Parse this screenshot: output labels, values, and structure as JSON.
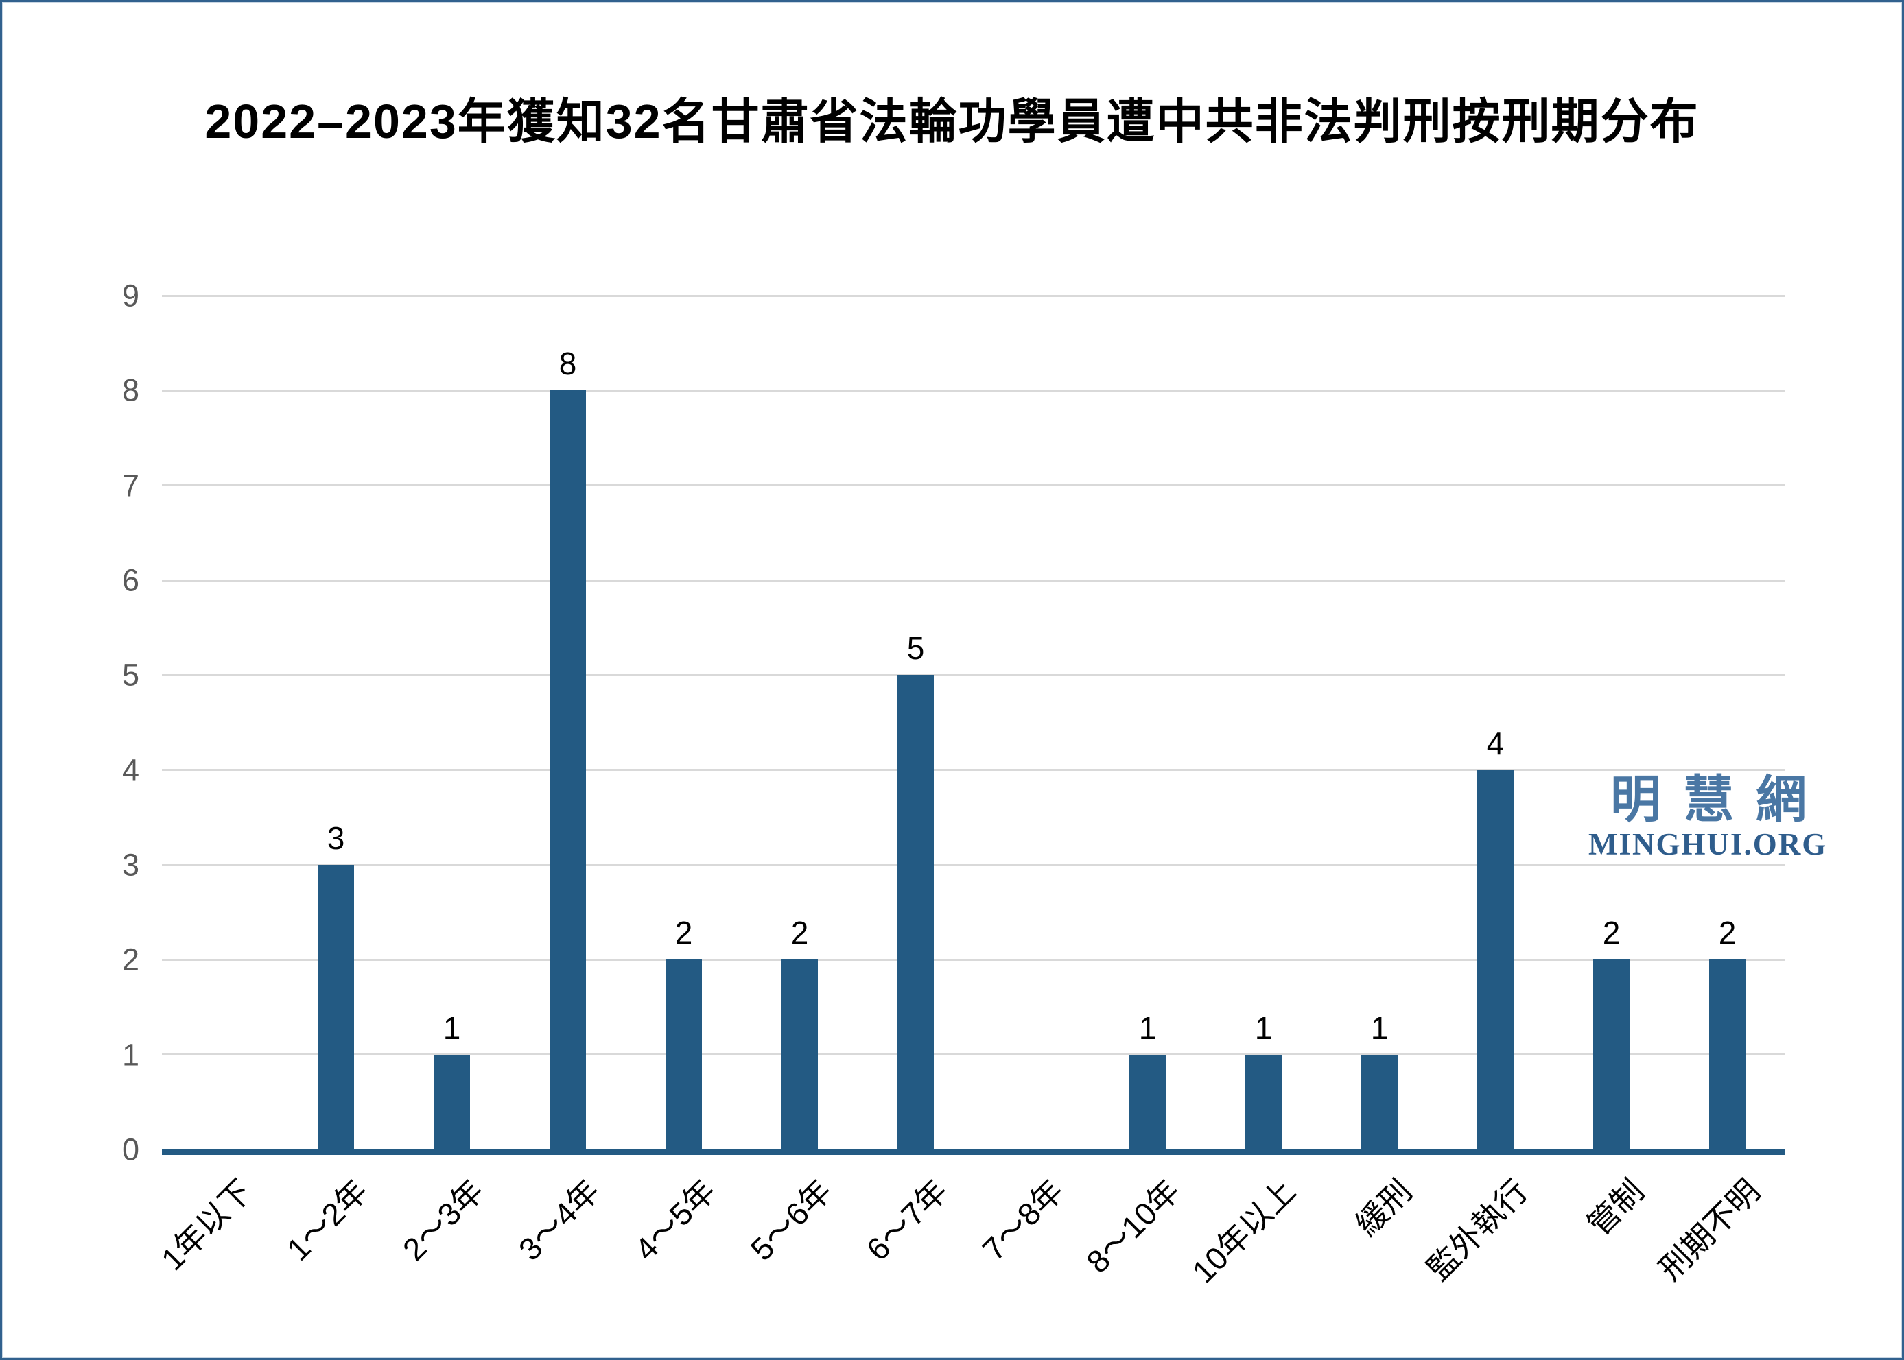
{
  "title": "2022–2023年獲知32名甘肅省法輪功學員遭中共非法判刑按刑期分布",
  "watermark": {
    "cjk": "明慧網",
    "latin": "MINGHUI.ORG"
  },
  "colors": {
    "bar": "#235A83",
    "axis_line": "#235A83",
    "gridline": "#D9D9D9",
    "y_tick_label": "#595959",
    "value_label": "#000000",
    "x_tick_label": "#000000",
    "frame_border": "#31618E",
    "watermark_cjk": "#4A77A4",
    "watermark_latin": "#2F5D8C",
    "background": "#FFFFFF"
  },
  "y_axis": {
    "ticks": [
      0,
      1,
      2,
      3,
      4,
      5,
      6,
      7,
      8,
      9
    ],
    "min": 0,
    "max": 9
  },
  "chart_data": {
    "type": "bar",
    "title": "2022–2023年獲知32名甘肅省法輪功學員遭中共非法判刑按刑期分布",
    "categories": [
      "1年以下",
      "1～2年",
      "2～3年",
      "3～4年",
      "4～5年",
      "5～6年",
      "6～7年",
      "7～8年",
      "8～10年",
      "10年以上",
      "緩刑",
      "監外執行",
      "管制",
      "刑期不明"
    ],
    "values": [
      0,
      3,
      1,
      8,
      2,
      2,
      5,
      0,
      1,
      1,
      1,
      4,
      2,
      2
    ],
    "total": 32,
    "xlabel": "",
    "ylabel": "",
    "ylim": [
      0,
      9
    ],
    "grid": true,
    "legend_position": "none",
    "bar_color": "#235A83",
    "value_labels_shown": true,
    "zero_value_labels_shown": false,
    "x_label_rotation_deg": -45
  }
}
